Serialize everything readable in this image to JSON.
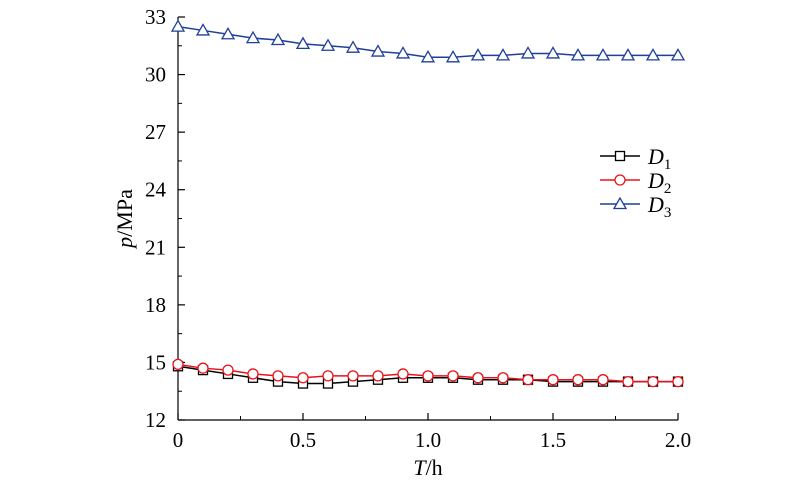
{
  "chart_data": {
    "type": "line",
    "title": "",
    "xlabel": {
      "var": "T",
      "unit": "/h"
    },
    "ylabel": {
      "var": "p",
      "unit": "/MPa"
    },
    "xlim": [
      0,
      2.0
    ],
    "ylim": [
      12,
      33
    ],
    "xticks": [
      0,
      0.5,
      1.0,
      1.5,
      2.0
    ],
    "xtick_labels": [
      "0",
      "0.5",
      "1.0",
      "1.5",
      "2.0"
    ],
    "yticks": [
      12,
      15,
      18,
      21,
      24,
      27,
      30,
      33
    ],
    "ytick_labels": [
      "12",
      "15",
      "18",
      "21",
      "24",
      "27",
      "30",
      "33"
    ],
    "grid": false,
    "legend_position": "right",
    "x": [
      0,
      0.1,
      0.2,
      0.3,
      0.4,
      0.5,
      0.6,
      0.7,
      0.8,
      0.9,
      1.0,
      1.1,
      1.2,
      1.3,
      1.4,
      1.5,
      1.6,
      1.7,
      1.8,
      1.9,
      2.0
    ],
    "series": [
      {
        "name": "D1",
        "base": "D",
        "sub": "1",
        "marker": "square",
        "color": "#000000",
        "values": [
          14.8,
          14.6,
          14.4,
          14.2,
          14.0,
          13.9,
          13.9,
          14.0,
          14.1,
          14.2,
          14.2,
          14.2,
          14.1,
          14.1,
          14.1,
          14.0,
          14.0,
          14.0,
          14.0,
          14.0,
          14.0
        ]
      },
      {
        "name": "D2",
        "base": "D",
        "sub": "2",
        "marker": "circle",
        "color": "#e8141c",
        "values": [
          14.9,
          14.7,
          14.6,
          14.4,
          14.3,
          14.2,
          14.3,
          14.3,
          14.3,
          14.4,
          14.3,
          14.3,
          14.2,
          14.2,
          14.1,
          14.1,
          14.1,
          14.1,
          14.0,
          14.0,
          14.0
        ]
      },
      {
        "name": "D3",
        "base": "D",
        "sub": "3",
        "marker": "triangle",
        "color": "#1f3f9a",
        "values": [
          32.5,
          32.3,
          32.1,
          31.9,
          31.8,
          31.6,
          31.5,
          31.4,
          31.2,
          31.1,
          30.9,
          30.9,
          31.0,
          31.0,
          31.1,
          31.1,
          31.0,
          31.0,
          31.0,
          31.0,
          31.0
        ]
      }
    ]
  }
}
